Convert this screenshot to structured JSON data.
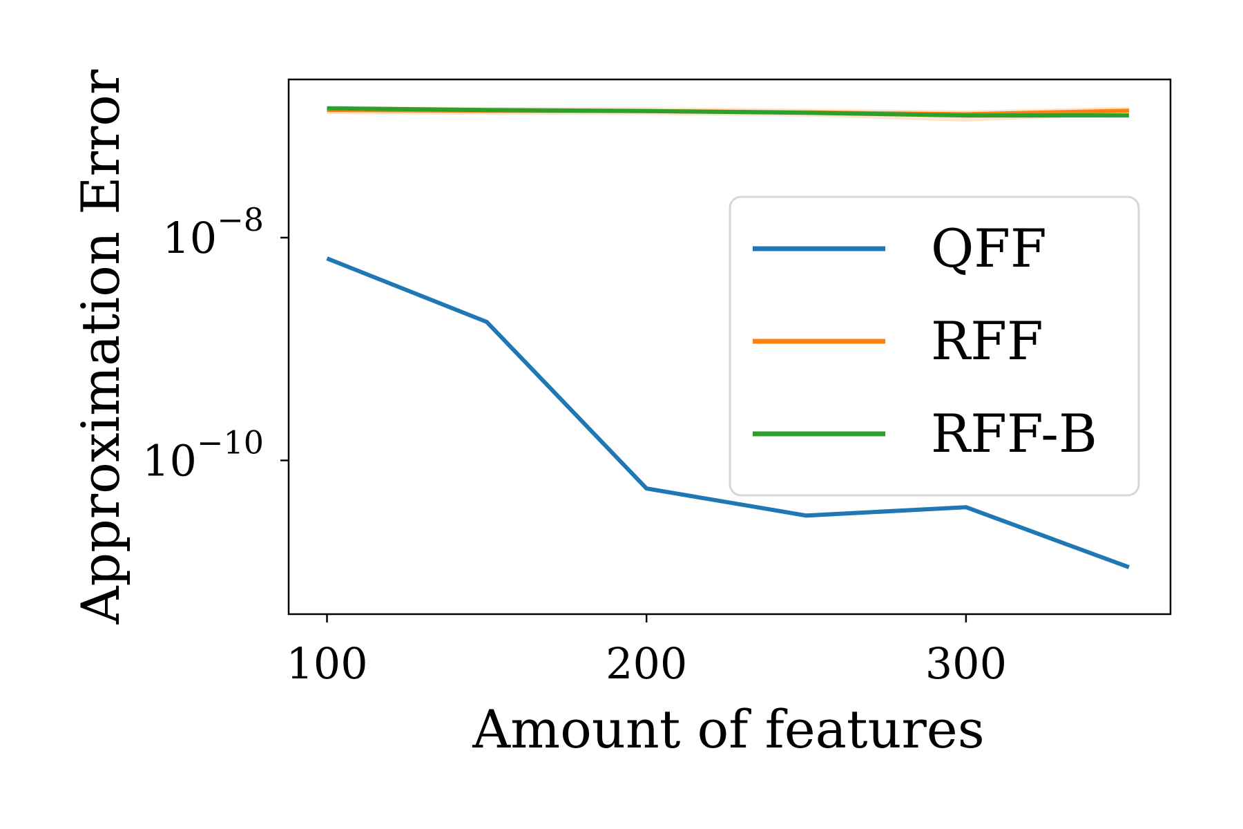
{
  "chart_data": {
    "type": "line",
    "title": "",
    "xlabel": "Amount of features",
    "ylabel": "Approximation Error",
    "xlim": [
      88,
      364
    ],
    "ylim_log10": [
      -11.38,
      -6.58
    ],
    "y_scale": "log",
    "grid": false,
    "legend_position": "upper-right",
    "x_ticks": [
      {
        "value": 100,
        "label": "100"
      },
      {
        "value": 200,
        "label": "200"
      },
      {
        "value": 300,
        "label": "300"
      }
    ],
    "y_ticks": [
      {
        "exponent": -8,
        "base": "10",
        "sup": "−8"
      },
      {
        "exponent": -10,
        "base": "10",
        "sup": "−10"
      }
    ],
    "x": [
      100,
      150,
      200,
      250,
      300,
      351
    ],
    "series": [
      {
        "name": "QFF",
        "color": "#1f77b4",
        "values": [
          6.5e-09,
          1.75e-09,
          5.6e-11,
          3.2e-11,
          3.8e-11,
          1.1e-11
        ]
      },
      {
        "name": "RFF",
        "color": "#ff7f0e",
        "band": true,
        "values": [
          1.4e-07,
          1.38e-07,
          1.37e-07,
          1.33e-07,
          1.28e-07,
          1.38e-07
        ]
      },
      {
        "name": "RFF-B",
        "color": "#2ca02c",
        "values": [
          1.45e-07,
          1.4e-07,
          1.37e-07,
          1.32e-07,
          1.25e-07,
          1.25e-07
        ]
      }
    ]
  }
}
